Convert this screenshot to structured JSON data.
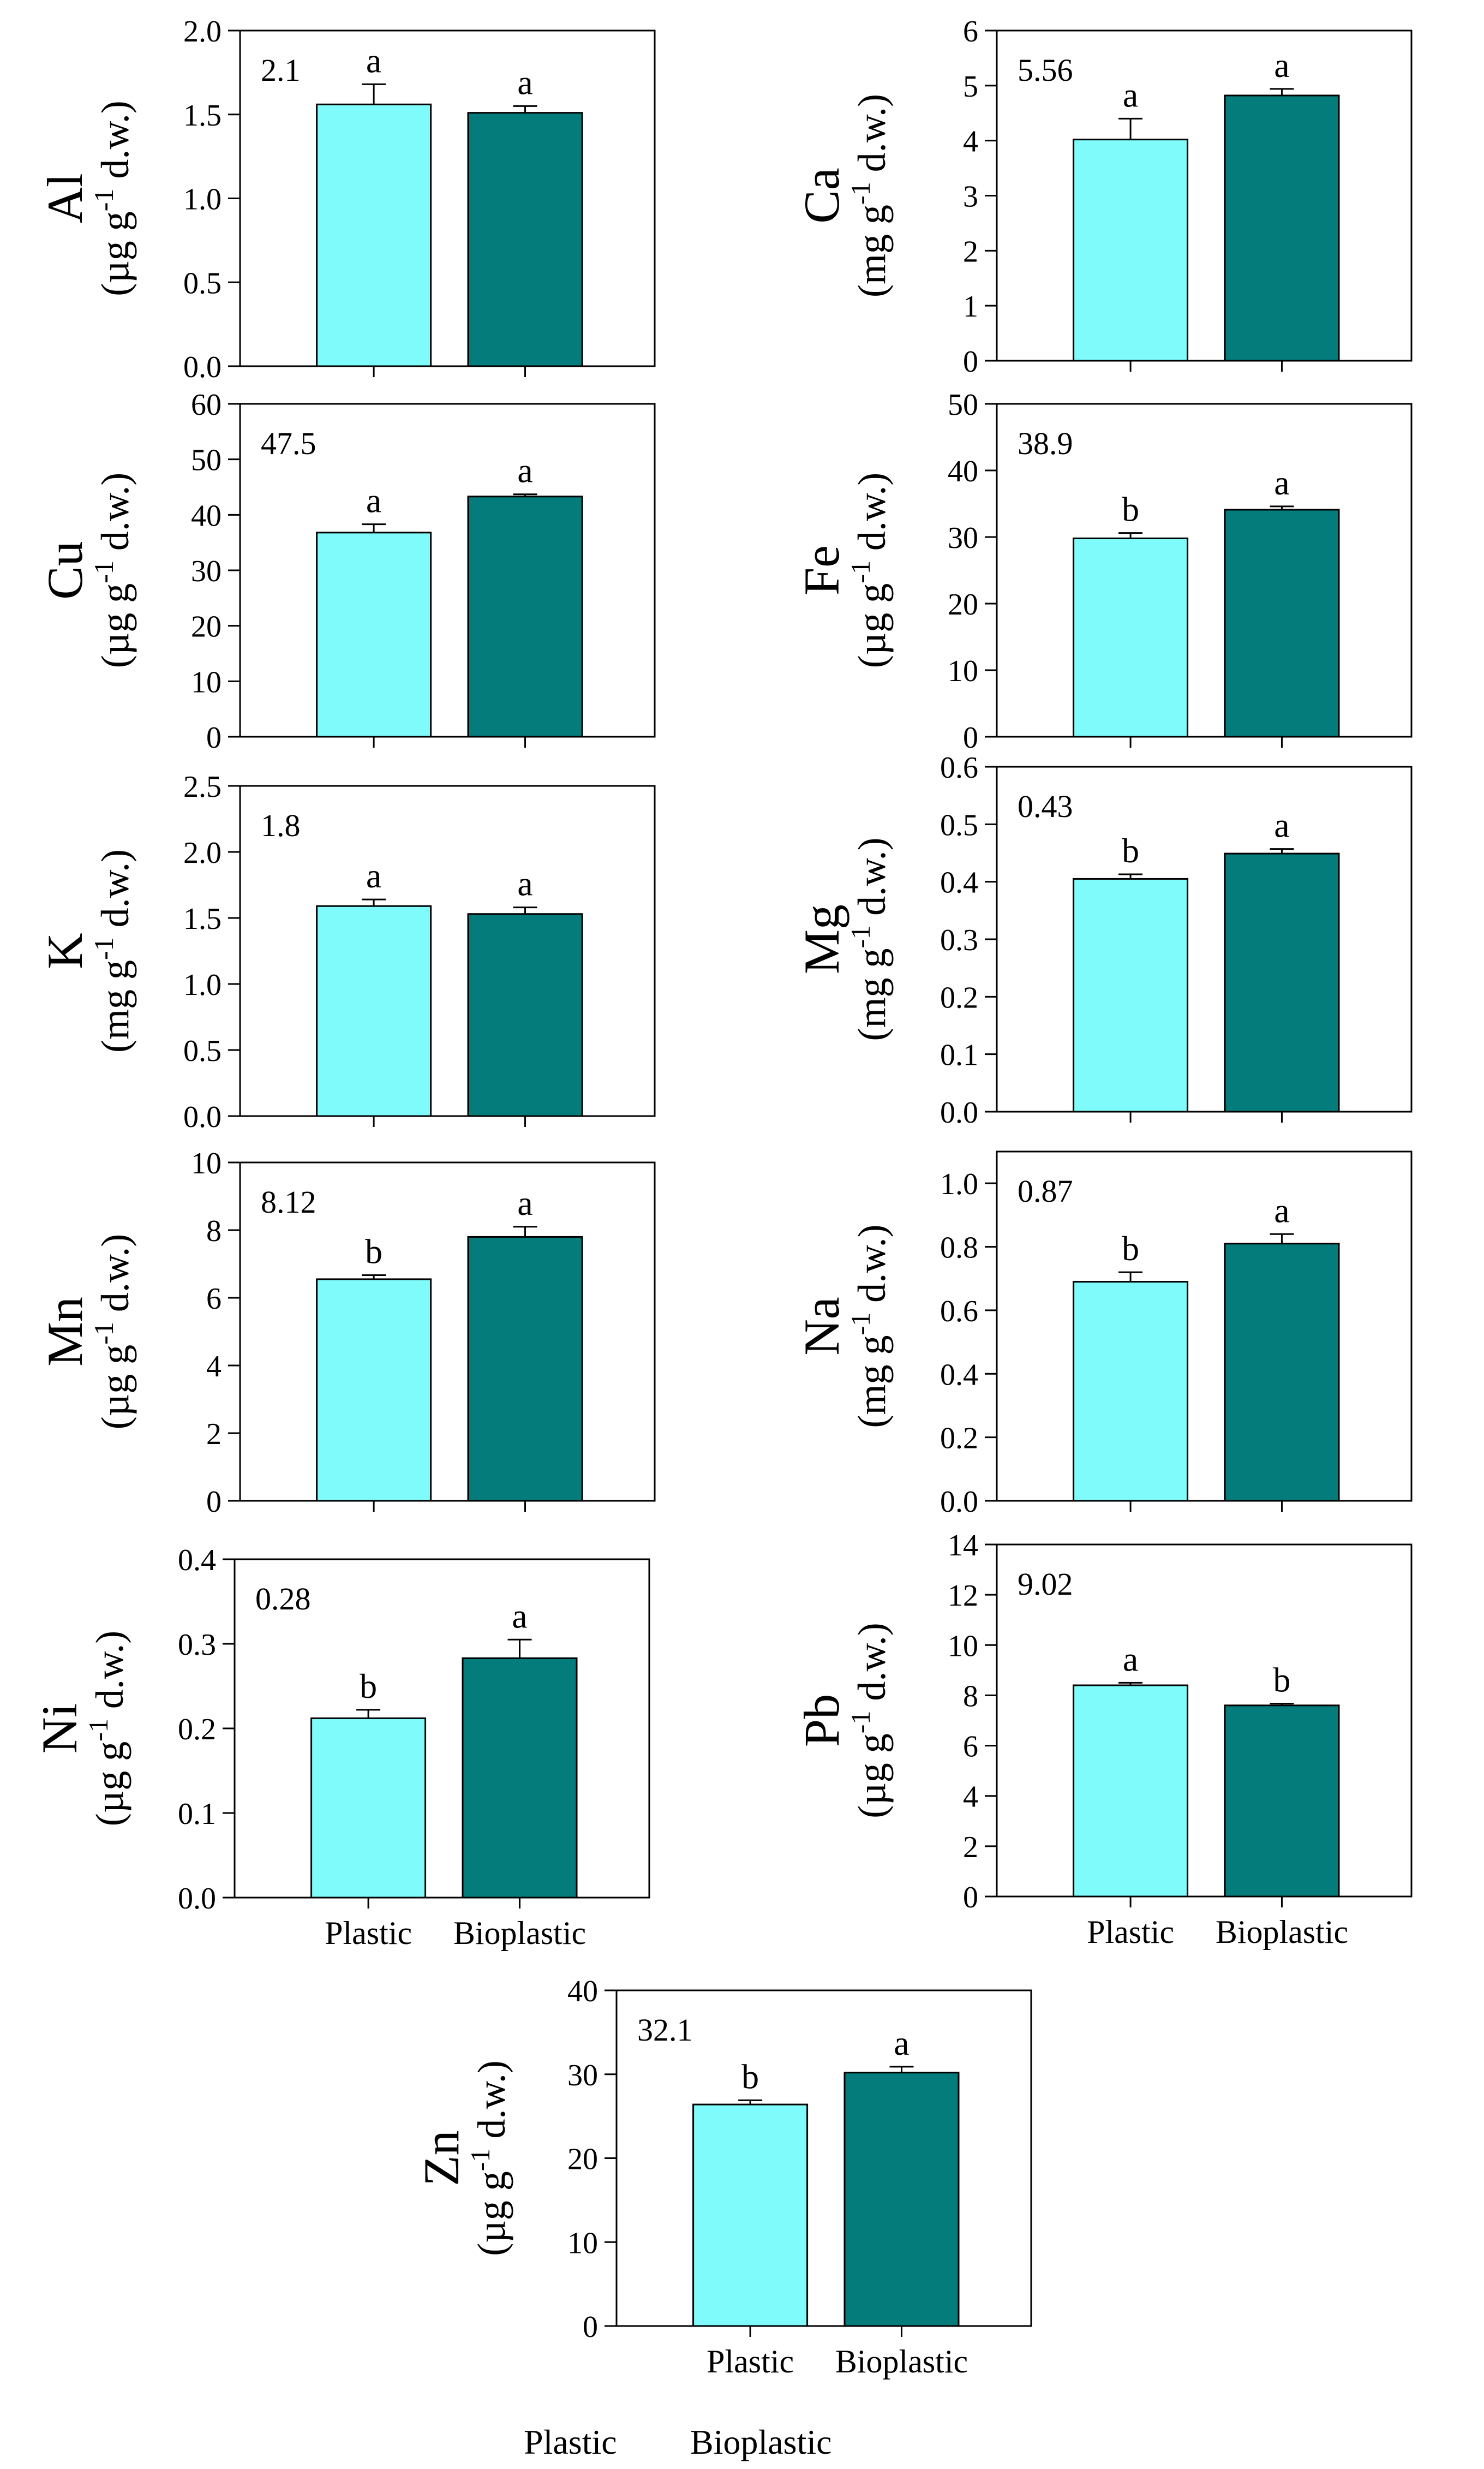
{
  "chart_data": [
    {
      "type": "bar",
      "element": "Al",
      "unit": "(µg g-1 d.w.)",
      "unit_prefix": "µg",
      "total_label": "2.1",
      "ylim": [
        0,
        2.0
      ],
      "yticks": [
        "0.0",
        "0.5",
        "1.0",
        "1.5",
        "2.0"
      ],
      "categories": [
        "Plastic",
        "Bioplastic"
      ],
      "values": [
        1.56,
        1.51
      ],
      "errors": [
        0.12,
        0.04
      ],
      "letters": [
        "a",
        "a"
      ],
      "show_xticklabels": false,
      "colors": [
        "#7ffbfb",
        "#057c7c"
      ]
    },
    {
      "type": "bar",
      "element": "Ca",
      "unit": "(mg g-1 d.w.)",
      "unit_prefix": "mg",
      "total_label": "5.56",
      "ylim": [
        0,
        6
      ],
      "yticks": [
        "0",
        "1",
        "2",
        "3",
        "4",
        "5",
        "6"
      ],
      "categories": [
        "Plastic",
        "Bioplastic"
      ],
      "values": [
        4.02,
        4.82
      ],
      "errors": [
        0.38,
        0.12
      ],
      "letters": [
        "a",
        "a"
      ],
      "show_xticklabels": false,
      "colors": [
        "#7ffbfb",
        "#057c7c"
      ]
    },
    {
      "type": "bar",
      "element": "Cu",
      "unit": "(µg g-1 d.w.)",
      "unit_prefix": "µg",
      "total_label": "47.5",
      "ylim": [
        0,
        60
      ],
      "yticks": [
        "0",
        "10",
        "20",
        "30",
        "40",
        "50",
        "60"
      ],
      "categories": [
        "Plastic",
        "Bioplastic"
      ],
      "values": [
        36.8,
        43.3
      ],
      "errors": [
        1.5,
        0.4
      ],
      "letters": [
        "a",
        "a"
      ],
      "show_xticklabels": false,
      "colors": [
        "#7ffbfb",
        "#057c7c"
      ]
    },
    {
      "type": "bar",
      "element": "Fe",
      "unit": "(µg g-1 d.w.)",
      "unit_prefix": "µg",
      "total_label": "38.9",
      "ylim": [
        0,
        50
      ],
      "yticks": [
        "0",
        "10",
        "20",
        "30",
        "40",
        "50"
      ],
      "categories": [
        "Plastic",
        "Bioplastic"
      ],
      "values": [
        29.8,
        34.1
      ],
      "errors": [
        0.8,
        0.5
      ],
      "letters": [
        "b",
        "a"
      ],
      "show_xticklabels": false,
      "colors": [
        "#7ffbfb",
        "#057c7c"
      ]
    },
    {
      "type": "bar",
      "element": "K",
      "unit": "(mg g-1 d.w.)",
      "unit_prefix": "mg",
      "total_label": "1.8",
      "ylim": [
        0,
        2.5
      ],
      "yticks": [
        "0.0",
        "0.5",
        "1.0",
        "1.5",
        "2.0",
        "2.5"
      ],
      "categories": [
        "Plastic",
        "Bioplastic"
      ],
      "values": [
        1.59,
        1.53
      ],
      "errors": [
        0.05,
        0.05
      ],
      "letters": [
        "a",
        "a"
      ],
      "show_xticklabels": false,
      "colors": [
        "#7ffbfb",
        "#057c7c"
      ]
    },
    {
      "type": "bar",
      "element": "Mg",
      "unit": "(mg g-1 d.w.)",
      "unit_prefix": "mg",
      "total_label": "0.43",
      "ylim": [
        0,
        0.6
      ],
      "yticks": [
        "0.0",
        "0.1",
        "0.2",
        "0.3",
        "0.4",
        "0.5",
        "0.6"
      ],
      "categories": [
        "Plastic",
        "Bioplastic"
      ],
      "values": [
        0.405,
        0.449
      ],
      "errors": [
        0.008,
        0.008
      ],
      "letters": [
        "b",
        "a"
      ],
      "show_xticklabels": false,
      "colors": [
        "#7ffbfb",
        "#057c7c"
      ]
    },
    {
      "type": "bar",
      "element": "Mn",
      "unit": "(µg g-1 d.w.)",
      "unit_prefix": "µg",
      "total_label": "8.12",
      "ylim": [
        0,
        10
      ],
      "yticks": [
        "0",
        "2",
        "4",
        "6",
        "8",
        "10"
      ],
      "categories": [
        "Plastic",
        "Bioplastic"
      ],
      "values": [
        6.55,
        7.8
      ],
      "errors": [
        0.12,
        0.3
      ],
      "letters": [
        "b",
        "a"
      ],
      "show_xticklabels": false,
      "colors": [
        "#7ffbfb",
        "#057c7c"
      ]
    },
    {
      "type": "bar",
      "element": "Na",
      "unit": "(mg g-1 d.w.)",
      "unit_prefix": "mg",
      "total_label": "0.87",
      "ylim": [
        0,
        1.1
      ],
      "yticks": [
        "0.0",
        "0.2",
        "0.4",
        "0.6",
        "0.8",
        "1.0"
      ],
      "categories": [
        "Plastic",
        "Bioplastic"
      ],
      "values": [
        0.69,
        0.81
      ],
      "errors": [
        0.03,
        0.03
      ],
      "letters": [
        "b",
        "a"
      ],
      "show_xticklabels": false,
      "colors": [
        "#7ffbfb",
        "#057c7c"
      ]
    },
    {
      "type": "bar",
      "element": "Ni",
      "unit": "(µg g-1 d.w.)",
      "unit_prefix": "µg",
      "total_label": "0.28",
      "ylim": [
        0,
        0.4
      ],
      "yticks": [
        "0.0",
        "0.1",
        "0.2",
        "0.3",
        "0.4"
      ],
      "categories": [
        "Plastic",
        "Bioplastic"
      ],
      "values": [
        0.212,
        0.283
      ],
      "errors": [
        0.01,
        0.022
      ],
      "letters": [
        "b",
        "a"
      ],
      "show_xticklabels": true,
      "colors": [
        "#7ffbfb",
        "#057c7c"
      ]
    },
    {
      "type": "bar",
      "element": "Pb",
      "unit": "(µg g-1 d.w.)",
      "unit_prefix": "µg",
      "total_label": "9.02",
      "ylim": [
        0,
        14
      ],
      "yticks": [
        "0",
        "2",
        "4",
        "6",
        "8",
        "10",
        "12",
        "14"
      ],
      "categories": [
        "Plastic",
        "Bioplastic"
      ],
      "values": [
        8.4,
        7.6
      ],
      "errors": [
        0.1,
        0.07
      ],
      "letters": [
        "a",
        "b"
      ],
      "show_xticklabels": true,
      "colors": [
        "#7ffbfb",
        "#057c7c"
      ]
    },
    {
      "type": "bar",
      "element": "Zn",
      "unit": "(µg g-1 d.w.)",
      "unit_prefix": "µg",
      "total_label": "32.1",
      "ylim": [
        0,
        40
      ],
      "yticks": [
        "0",
        "10",
        "20",
        "30",
        "40"
      ],
      "categories": [
        "Plastic",
        "Bioplastic"
      ],
      "values": [
        26.4,
        30.2
      ],
      "errors": [
        0.5,
        0.7
      ],
      "letters": [
        "b",
        "a"
      ],
      "show_xticklabels": true,
      "colors": [
        "#7ffbfb",
        "#057c7c"
      ]
    }
  ],
  "footer_legend": [
    "Plastic",
    "Bioplastic"
  ]
}
